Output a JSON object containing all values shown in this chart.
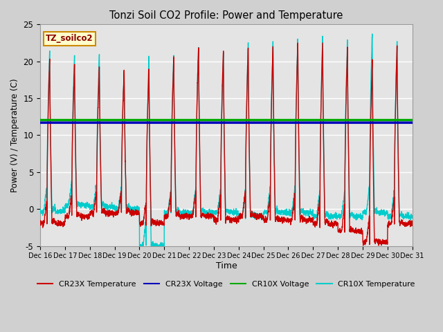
{
  "title": "Tonzi Soil CO2 Profile: Power and Temperature",
  "xlabel": "Time",
  "ylabel": "Power (V) / Temperature (C)",
  "ylim": [
    -5,
    25
  ],
  "fig_bg_color": "#d0d0d0",
  "plot_bg_outer": "#c8c8c8",
  "plot_bg_inner": "#e8e8e8",
  "cr23x_temp_color": "#cc0000",
  "cr23x_volt_color": "#0000bb",
  "cr10x_volt_color": "#00aa00",
  "cr10x_temp_color": "#00cccc",
  "cr23x_volt_value": 11.7,
  "cr10x_volt_value": 12.05,
  "annotation_text": "TZ_soilco2",
  "annotation_bg": "#ffffcc",
  "annotation_border": "#cc8800",
  "x_tick_labels": [
    "Dec 16",
    "Dec 17",
    "Dec 18",
    "Dec 19",
    "Dec 20",
    "Dec 21",
    "Dec 22",
    "Dec 23",
    "Dec 24",
    "Dec 25",
    "Dec 26",
    "Dec 27",
    "Dec 28",
    "Dec 29",
    "Dec 30",
    "Dec 31"
  ],
  "legend_labels": [
    "CR23X Temperature",
    "CR23X Voltage",
    "CR10X Voltage",
    "CR10X Temperature"
  ],
  "cr23x_peaks": [
    20.5,
    19.5,
    19.0,
    19.0,
    19.0,
    20.5,
    22.0,
    21.5,
    22.0,
    22.0,
    22.5,
    22.5,
    22.0,
    20.0,
    22.0
  ],
  "cr23x_troughs": [
    -2.0,
    -1.0,
    -0.5,
    -0.5,
    -2.0,
    -1.0,
    -1.0,
    -1.5,
    -1.0,
    -1.5,
    -1.5,
    -2.0,
    -3.0,
    -4.5,
    -2.0
  ],
  "cr10x_peaks": [
    21.5,
    21.0,
    21.0,
    18.5,
    21.0,
    21.0,
    22.0,
    21.0,
    22.0,
    22.5,
    23.0,
    23.0,
    23.0,
    24.0,
    22.5
  ],
  "cr10x_troughs": [
    -0.3,
    0.5,
    0.3,
    0.0,
    -5.0,
    -0.5,
    -0.5,
    -0.5,
    -1.0,
    -0.5,
    -0.5,
    -1.0,
    -1.0,
    -0.5,
    -1.0
  ]
}
